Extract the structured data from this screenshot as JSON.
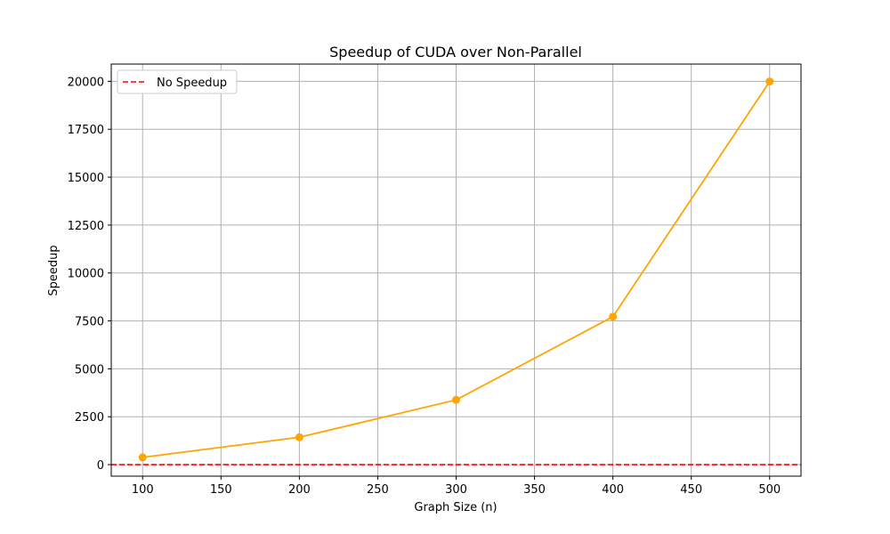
{
  "chart_data": {
    "type": "line",
    "title": "Speedup of CUDA over Non-Parallel",
    "xlabel": "Graph Size (n)",
    "ylabel": "Speedup",
    "xlim": [
      80,
      520
    ],
    "ylim": [
      -600,
      20900
    ],
    "x_ticks": [
      100,
      150,
      200,
      250,
      300,
      350,
      400,
      450,
      500
    ],
    "y_ticks": [
      0,
      2500,
      5000,
      7500,
      10000,
      12500,
      15000,
      17500,
      20000
    ],
    "grid": true,
    "legend_position": "top-left",
    "series": [
      {
        "color": "#ffa500",
        "marker": "circle",
        "x": [
          100,
          200,
          300,
          400,
          500
        ],
        "y": [
          380,
          1430,
          3380,
          7720,
          19990
        ]
      }
    ],
    "reference_lines": [
      {
        "name": "No Speedup",
        "y": 1,
        "color": "#ff0000",
        "style": "dashed"
      }
    ]
  }
}
